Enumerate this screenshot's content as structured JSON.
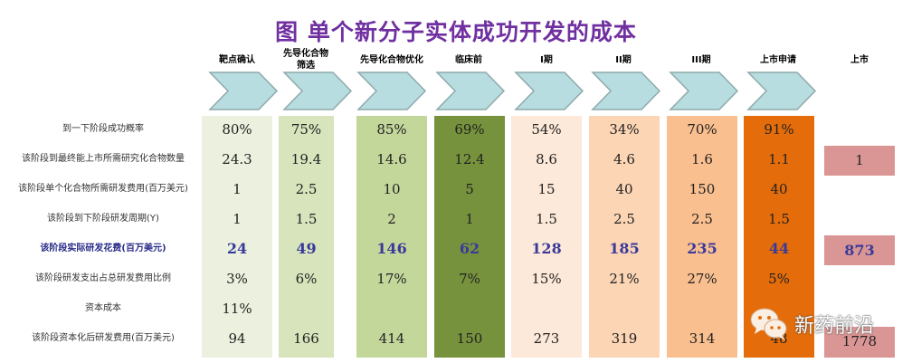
{
  "title": "图 单个新分子实体成功开发的成本",
  "colors": {
    "title": "#7030a0",
    "chevron_fill": "#b7dde0",
    "chevron_stroke": "#8fa9ab",
    "highlight_text": "#3a3a9a",
    "market_cell": "#da9694"
  },
  "stages": [
    {
      "label": "靶点确认",
      "color": "#ebf1de"
    },
    {
      "label": "先导化合物\n筛选",
      "color": "#d7e4bc"
    },
    {
      "label": "先导化合物优化",
      "color": "#c4d79b"
    },
    {
      "label": "临床前",
      "color": "#76923c"
    },
    {
      "label": "I期",
      "color": "#fde9d9"
    },
    {
      "label": "II期",
      "color": "#fcd5b4"
    },
    {
      "label": "III期",
      "color": "#fabf8f"
    },
    {
      "label": "上市申请",
      "color": "#e46c0a"
    },
    {
      "label": "上市",
      "color": "#da9694"
    }
  ],
  "row_labels": [
    "到一下阶段成功概率",
    "该阶段到最终能上市所需研究化合物数量",
    "该阶段单个化合物所需研发费用(百万美元)",
    "该阶段到下阶段研发周期(Y)",
    "该阶段实际研发花费(百万美元)",
    "该阶段研发支出占总研发费用比例",
    "资本成本",
    "该阶段资本化后研发费用(百万美元)"
  ],
  "table": [
    [
      "80%",
      "24.3",
      "1",
      "1",
      "24",
      "3%",
      "11%",
      "94"
    ],
    [
      "75%",
      "19.4",
      "2.5",
      "1.5",
      "49",
      "6%",
      "",
      "166"
    ],
    [
      "85%",
      "14.6",
      "10",
      "2",
      "146",
      "17%",
      "",
      "414"
    ],
    [
      "69%",
      "12.4",
      "5",
      "1",
      "62",
      "7%",
      "",
      "150"
    ],
    [
      "54%",
      "8.6",
      "15",
      "1.5",
      "128",
      "15%",
      "",
      "273"
    ],
    [
      "34%",
      "4.6",
      "40",
      "2.5",
      "185",
      "21%",
      "",
      "319"
    ],
    [
      "70%",
      "1.6",
      "150",
      "2.5",
      "235",
      "27%",
      "",
      "314"
    ],
    [
      "91%",
      "1.1",
      "40",
      "1.5",
      "44",
      "5%",
      "",
      "48"
    ]
  ],
  "market": {
    "compounds": "1",
    "actual_cost": "873",
    "capitalized_cost": "1778"
  },
  "watermark": "新药前沿",
  "chart_data": {
    "type": "table",
    "title": "图 单个新分子实体成功开发的成本",
    "columns": [
      "靶点确认",
      "先导化合物筛选",
      "先导化合物优化",
      "临床前",
      "I期",
      "II期",
      "III期",
      "上市申请",
      "上市"
    ],
    "rows": [
      {
        "label": "到一下阶段成功概率",
        "values": [
          "80%",
          "75%",
          "85%",
          "69%",
          "54%",
          "34%",
          "70%",
          "91%",
          ""
        ]
      },
      {
        "label": "该阶段到最终能上市所需研究化合物数量",
        "values": [
          24.3,
          19.4,
          14.6,
          12.4,
          8.6,
          4.6,
          1.6,
          1.1,
          1
        ]
      },
      {
        "label": "该阶段单个化合物所需研发费用(百万美元)",
        "values": [
          1,
          2.5,
          10,
          5,
          15,
          40,
          150,
          40,
          null
        ]
      },
      {
        "label": "该阶段到下阶段研发周期(Y)",
        "values": [
          1,
          1.5,
          2,
          1,
          1.5,
          2.5,
          2.5,
          1.5,
          null
        ]
      },
      {
        "label": "该阶段实际研发花费(百万美元)",
        "values": [
          24,
          49,
          146,
          62,
          128,
          185,
          235,
          44,
          873
        ]
      },
      {
        "label": "该阶段研发支出占总研发费用比例",
        "values": [
          "3%",
          "6%",
          "17%",
          "7%",
          "15%",
          "21%",
          "27%",
          "5%",
          ""
        ]
      },
      {
        "label": "资本成本",
        "values": [
          "11%",
          "",
          "",
          "",
          "",
          "",
          "",
          "",
          ""
        ]
      },
      {
        "label": "该阶段资本化后研发费用(百万美元)",
        "values": [
          94,
          166,
          414,
          150,
          273,
          319,
          314,
          48,
          1778
        ]
      }
    ]
  }
}
